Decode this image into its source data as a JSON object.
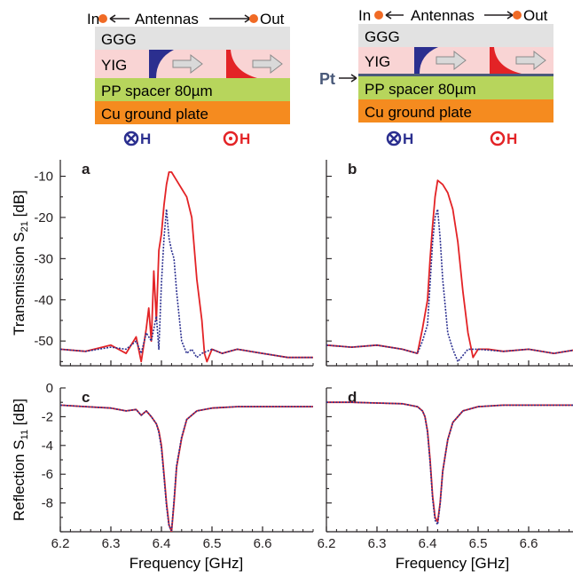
{
  "schematics": [
    {
      "antennas_label": "Antennas",
      "in_label": "In",
      "out_label": "Out",
      "layers": [
        "GGG",
        "YIG",
        "PP spacer 80µm",
        "Cu ground plate"
      ],
      "pt_label": "",
      "field_left": "H",
      "field_right": "H"
    },
    {
      "antennas_label": "Antennas",
      "in_label": "In",
      "out_label": "Out",
      "layers": [
        "GGG",
        "YIG",
        "PP spacer 80µm",
        "Cu ground plate"
      ],
      "pt_label": "Pt",
      "field_left": "H",
      "field_right": "H"
    }
  ],
  "colors": {
    "series_red": "#e32326",
    "series_blue": "#2b2f8f",
    "ggg": "#e2e2e2",
    "yig": "#f9d4d4",
    "spacer": "#b7d55c",
    "copper": "#f58b1f",
    "pt": "#4a5a7a",
    "antenna_dot": "#f06a25"
  },
  "labels": {
    "top_ylabel_main": "Transmission S",
    "top_ylabel_sub": "21",
    "top_ylabel_unit": " [dB]",
    "bottom_ylabel_main": "Reflection S",
    "bottom_ylabel_sub": "11",
    "bottom_ylabel_unit": " [dB]",
    "xlabel": "Frequency [GHz]"
  },
  "chart_data": [
    {
      "panel": "a",
      "type": "line",
      "xlim": [
        6.2,
        6.7
      ],
      "ylim": [
        -56,
        -6
      ],
      "xticks": [
        6.2,
        6.3,
        6.4,
        6.5,
        6.6
      ],
      "yticks": [
        -10,
        -20,
        -30,
        -40,
        -50
      ],
      "ytick_labels": [
        "-10",
        "-20",
        "-30",
        "-40",
        "-50"
      ],
      "series": [
        {
          "color": "red",
          "dash": false,
          "x": [
            6.2,
            6.25,
            6.3,
            6.33,
            6.35,
            6.36,
            6.37,
            6.375,
            6.38,
            6.385,
            6.39,
            6.395,
            6.4,
            6.405,
            6.41,
            6.415,
            6.42,
            6.43,
            6.44,
            6.45,
            6.46,
            6.47,
            6.48,
            6.485,
            6.49,
            6.5,
            6.52,
            6.55,
            6.6,
            6.65,
            6.7
          ],
          "y": [
            -52,
            -52.5,
            -51,
            -53,
            -49,
            -55,
            -47,
            -42,
            -50,
            -33,
            -45,
            -28,
            -24,
            -17,
            -12,
            -9,
            -9,
            -11,
            -13,
            -15,
            -20,
            -35,
            -45,
            -53,
            -55,
            -52,
            -53,
            -52,
            -53,
            -54,
            -54
          ]
        },
        {
          "color": "blue",
          "dash": true,
          "x": [
            6.2,
            6.25,
            6.3,
            6.33,
            6.35,
            6.36,
            6.37,
            6.38,
            6.39,
            6.395,
            6.4,
            6.405,
            6.41,
            6.415,
            6.42,
            6.425,
            6.43,
            6.44,
            6.45,
            6.46,
            6.47,
            6.48,
            6.5,
            6.52,
            6.55,
            6.6,
            6.65,
            6.7
          ],
          "y": [
            -52,
            -52.5,
            -51.5,
            -52,
            -50,
            -53,
            -48,
            -50,
            -44,
            -52,
            -36,
            -25,
            -18,
            -25,
            -28,
            -30,
            -38,
            -50,
            -53,
            -52,
            -54,
            -53,
            -52,
            -53,
            -52,
            -53,
            -54,
            -54
          ]
        }
      ]
    },
    {
      "panel": "b",
      "type": "line",
      "xlim": [
        6.2,
        6.7
      ],
      "ylim": [
        -56,
        -6
      ],
      "xticks": [
        6.2,
        6.3,
        6.4,
        6.5,
        6.6
      ],
      "yticks": [
        -10,
        -20,
        -30,
        -40,
        -50
      ],
      "series": [
        {
          "color": "red",
          "dash": false,
          "x": [
            6.2,
            6.25,
            6.3,
            6.35,
            6.38,
            6.39,
            6.4,
            6.405,
            6.41,
            6.415,
            6.42,
            6.43,
            6.44,
            6.45,
            6.46,
            6.47,
            6.48,
            6.49,
            6.5,
            6.52,
            6.55,
            6.6,
            6.65,
            6.7
          ],
          "y": [
            -51,
            -51.5,
            -51,
            -52,
            -53,
            -47,
            -40,
            -30,
            -22,
            -15,
            -11,
            -12,
            -14,
            -18,
            -26,
            -38,
            -48,
            -54,
            -52,
            -52,
            -52.5,
            -52,
            -53,
            -52
          ]
        },
        {
          "color": "blue",
          "dash": true,
          "x": [
            6.2,
            6.25,
            6.3,
            6.35,
            6.38,
            6.39,
            6.4,
            6.405,
            6.41,
            6.415,
            6.42,
            6.425,
            6.43,
            6.44,
            6.45,
            6.46,
            6.48,
            6.5,
            6.55,
            6.6,
            6.65,
            6.7
          ],
          "y": [
            -51,
            -51.5,
            -51,
            -52,
            -53,
            -50,
            -46,
            -36,
            -26,
            -20,
            -18,
            -25,
            -35,
            -48,
            -52,
            -55,
            -52,
            -52,
            -52.5,
            -52,
            -53,
            -52
          ]
        }
      ]
    },
    {
      "panel": "c",
      "type": "line",
      "xlim": [
        6.2,
        6.7
      ],
      "ylim": [
        -10,
        0
      ],
      "xticks": [
        6.2,
        6.3,
        6.4,
        6.5,
        6.6
      ],
      "xtick_labels": [
        "6.2",
        "6.3",
        "6.4",
        "6.5",
        "6.6"
      ],
      "yticks": [
        0,
        -2,
        -4,
        -6,
        -8
      ],
      "ytick_labels": [
        "0",
        "-2",
        "-4",
        "-6",
        "-8"
      ],
      "series": [
        {
          "color": "red",
          "dash": false,
          "x": [
            6.2,
            6.25,
            6.3,
            6.33,
            6.35,
            6.36,
            6.37,
            6.38,
            6.39,
            6.395,
            6.4,
            6.405,
            6.41,
            6.415,
            6.42,
            6.425,
            6.43,
            6.44,
            6.45,
            6.47,
            6.5,
            6.55,
            6.6,
            6.7
          ],
          "y": [
            -1.2,
            -1.3,
            -1.4,
            -1.6,
            -1.5,
            -1.9,
            -1.6,
            -2.0,
            -2.5,
            -3.0,
            -4.0,
            -6.0,
            -8.0,
            -9.5,
            -10,
            -8.0,
            -5.5,
            -3.5,
            -2.2,
            -1.6,
            -1.4,
            -1.3,
            -1.3,
            -1.3
          ]
        },
        {
          "color": "blue",
          "dash": true,
          "x": [
            6.2,
            6.25,
            6.3,
            6.33,
            6.35,
            6.36,
            6.37,
            6.38,
            6.39,
            6.395,
            6.4,
            6.405,
            6.41,
            6.415,
            6.42,
            6.425,
            6.43,
            6.44,
            6.45,
            6.47,
            6.5,
            6.55,
            6.6,
            6.7
          ],
          "y": [
            -1.2,
            -1.3,
            -1.4,
            -1.6,
            -1.5,
            -1.9,
            -1.6,
            -2.0,
            -2.5,
            -3.1,
            -4.2,
            -6.2,
            -8.2,
            -9.6,
            -9.9,
            -7.8,
            -5.4,
            -3.4,
            -2.2,
            -1.6,
            -1.4,
            -1.3,
            -1.3,
            -1.3
          ]
        }
      ]
    },
    {
      "panel": "d",
      "type": "line",
      "xlim": [
        6.2,
        6.7
      ],
      "ylim": [
        -10,
        0
      ],
      "xticks": [
        6.2,
        6.3,
        6.4,
        6.5,
        6.6
      ],
      "xtick_labels": [
        "6.2",
        "6.3",
        "6.4",
        "6.5",
        "6.6"
      ],
      "yticks": [
        0,
        -2,
        -4,
        -6,
        -8
      ],
      "series": [
        {
          "color": "red",
          "dash": false,
          "x": [
            6.2,
            6.25,
            6.3,
            6.35,
            6.38,
            6.39,
            6.395,
            6.4,
            6.405,
            6.41,
            6.415,
            6.42,
            6.425,
            6.43,
            6.44,
            6.45,
            6.47,
            6.5,
            6.55,
            6.6,
            6.7
          ],
          "y": [
            -1.0,
            -1.0,
            -1.05,
            -1.1,
            -1.3,
            -1.6,
            -2.0,
            -3.0,
            -5.0,
            -7.5,
            -9.0,
            -9.3,
            -8.0,
            -5.8,
            -3.6,
            -2.4,
            -1.6,
            -1.3,
            -1.2,
            -1.2,
            -1.2
          ]
        },
        {
          "color": "blue",
          "dash": true,
          "x": [
            6.2,
            6.25,
            6.3,
            6.35,
            6.38,
            6.39,
            6.395,
            6.4,
            6.405,
            6.41,
            6.415,
            6.42,
            6.425,
            6.43,
            6.44,
            6.45,
            6.47,
            6.5,
            6.55,
            6.6,
            6.7
          ],
          "y": [
            -1.0,
            -1.0,
            -1.05,
            -1.1,
            -1.3,
            -1.6,
            -2.0,
            -3.1,
            -5.2,
            -7.7,
            -9.2,
            -9.5,
            -8.1,
            -5.8,
            -3.6,
            -2.4,
            -1.6,
            -1.3,
            -1.2,
            -1.2,
            -1.2
          ]
        }
      ]
    }
  ]
}
